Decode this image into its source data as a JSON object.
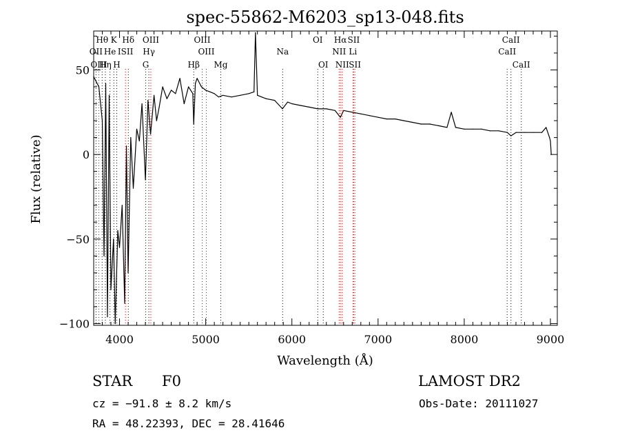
{
  "chart_data": {
    "type": "line",
    "title": "spec-55862-M6203_sp13-048.fits",
    "xlabel": "Wavelength (Å)",
    "ylabel": "Flux (relative)",
    "xlim": [
      3700,
      9080
    ],
    "ylim": [
      -101,
      73
    ],
    "xticks": [
      4000,
      5000,
      6000,
      7000,
      8000,
      9000
    ],
    "xtick_labels": [
      "4000",
      "5000",
      "6000",
      "7000",
      "8000",
      "9000"
    ],
    "yticks": [
      -100,
      -50,
      0,
      50
    ],
    "ytick_labels": [
      "−100",
      "−50",
      "0",
      "50"
    ],
    "grid": false,
    "series": [
      {
        "color": "#000000",
        "x": [
          3700,
          3760,
          3800,
          3820,
          3840,
          3860,
          3880,
          3900,
          3930,
          3950,
          3980,
          4000,
          4030,
          4060,
          4080,
          4100,
          4130,
          4160,
          4200,
          4230,
          4260,
          4300,
          4330,
          4360,
          4400,
          4430,
          4460,
          4500,
          4550,
          4600,
          4650,
          4700,
          4750,
          4800,
          4850,
          4861,
          4880,
          4900,
          4950,
          5000,
          5050,
          5100,
          5150,
          5200,
          5300,
          5400,
          5500,
          5560,
          5577,
          5600,
          5700,
          5800,
          5890,
          5950,
          6000,
          6100,
          6200,
          6300,
          6400,
          6500,
          6563,
          6600,
          6700,
          6800,
          6900,
          7000,
          7100,
          7200,
          7300,
          7400,
          7500,
          7600,
          7700,
          7800,
          7850,
          7900,
          8000,
          8100,
          8200,
          8300,
          8400,
          8500,
          8542,
          8600,
          8700,
          8800,
          8900,
          8950,
          8990,
          9000,
          9010
        ],
        "values": [
          46,
          40,
          20,
          -60,
          42,
          -96,
          35,
          -80,
          -50,
          -100,
          -45,
          -55,
          -30,
          -88,
          5,
          -70,
          10,
          -20,
          15,
          8,
          30,
          -15,
          32,
          12,
          35,
          20,
          28,
          40,
          33,
          38,
          36,
          45,
          30,
          40,
          36,
          18,
          42,
          45,
          40,
          38,
          37,
          36,
          34,
          35,
          34,
          35,
          36,
          37,
          72,
          35,
          33,
          32,
          27,
          31,
          30,
          29,
          28,
          27,
          27,
          26,
          22,
          26,
          25,
          24,
          23,
          22,
          21,
          21,
          20,
          19,
          18,
          18,
          17,
          16,
          25,
          16,
          15,
          15,
          15,
          14,
          14,
          13,
          11,
          13,
          13,
          13,
          13,
          16,
          10,
          8,
          0
        ]
      }
    ],
    "annotations": [
      {
        "text": "Hθ",
        "x": 3798,
        "row": 1
      },
      {
        "text": "K",
        "x": 3934,
        "row": 1
      },
      {
        "text": "Hδ",
        "x": 4102,
        "row": 1
      },
      {
        "text": "OIII",
        "x": 4363,
        "row": 1
      },
      {
        "text": "OIII",
        "x": 4959,
        "row": 1
      },
      {
        "text": "OI",
        "x": 6300,
        "row": 1
      },
      {
        "text": "Hα",
        "x": 6563,
        "row": 1
      },
      {
        "text": "SII",
        "x": 6717,
        "row": 1
      },
      {
        "text": "CaII",
        "x": 8542,
        "row": 1
      },
      {
        "text": "OII",
        "x": 3727,
        "row": 2
      },
      {
        "text": "He",
        "x": 3889,
        "row": 2
      },
      {
        "text": "ISII",
        "x": 4069,
        "row": 2
      },
      {
        "text": "Hγ",
        "x": 4340,
        "row": 2
      },
      {
        "text": "OIII",
        "x": 5007,
        "row": 2
      },
      {
        "text": "Na",
        "x": 5893,
        "row": 2
      },
      {
        "text": "NII",
        "x": 6548,
        "row": 2
      },
      {
        "text": "Li",
        "x": 6708,
        "row": 2
      },
      {
        "text": "CaII",
        "x": 8498,
        "row": 2
      },
      {
        "text": "OIII",
        "x": 3760,
        "row": 3
      },
      {
        "text": "Hη",
        "x": 3835,
        "row": 3
      },
      {
        "text": "H",
        "x": 3968,
        "row": 3
      },
      {
        "text": "G",
        "x": 4304,
        "row": 3
      },
      {
        "text": "Hβ",
        "x": 4861,
        "row": 3
      },
      {
        "text": "Mg",
        "x": 5175,
        "row": 3
      },
      {
        "text": "OI",
        "x": 6364,
        "row": 3
      },
      {
        "text": "NII",
        "x": 6584,
        "row": 3
      },
      {
        "text": "SII",
        "x": 6731,
        "row": 3
      },
      {
        "text": "CaII",
        "x": 8662,
        "row": 3
      }
    ],
    "line_markers": {
      "black": [
        3727,
        3798,
        3835,
        3889,
        3934,
        3968,
        4102,
        4304,
        4340,
        4861,
        5175,
        5893,
        6300,
        6364,
        8498,
        8542,
        8662
      ],
      "red": [
        3760,
        4069,
        4363,
        4959,
        5007,
        6548,
        6563,
        6584,
        6708,
        6717,
        6731
      ]
    }
  },
  "info": {
    "class_label": "STAR",
    "subclass": "F0",
    "survey": "LAMOST DR2",
    "velocity": "cz = −91.8 ± 8.2 km/s",
    "obs_date": "Obs-Date: 20111027",
    "coords": "RA =  48.22393, DEC =  28.41646"
  }
}
